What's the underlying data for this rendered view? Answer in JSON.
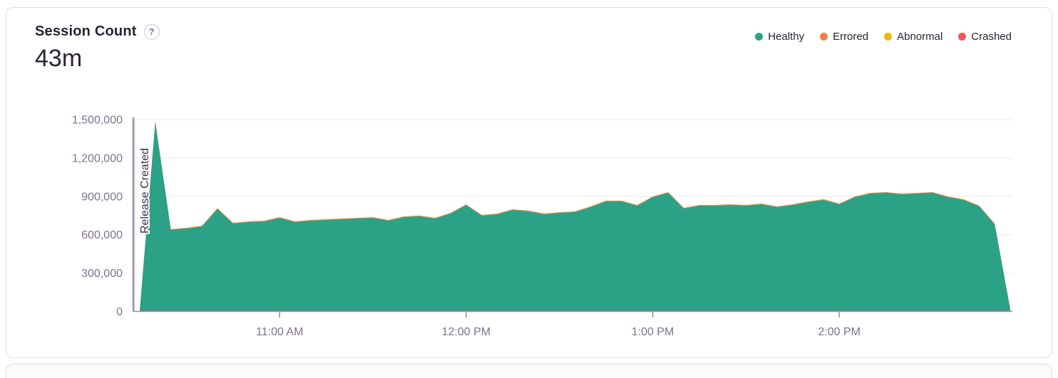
{
  "header": {
    "title": "Session Count",
    "big_number": "43m"
  },
  "icons": {
    "help": "?"
  },
  "legend": {
    "position": "top-right",
    "items": [
      {
        "label": "Healthy",
        "color": "#2ba185"
      },
      {
        "label": "Errored",
        "color": "#ef7d45"
      },
      {
        "label": "Abnormal",
        "color": "#efb810"
      },
      {
        "label": "Crashed",
        "color": "#f05558"
      }
    ]
  },
  "colors": {
    "healthy": "#2ba185",
    "errored": "#ef7d45",
    "abnormal": "#efb810",
    "crashed": "#f05558",
    "axis_line": "#988da9",
    "axis_text": "#80708f",
    "grid": "#f2eff5",
    "title_text": "#2b2233",
    "card_border": "#e0dce7",
    "release_line": "#877e93",
    "release_text": "#3c3545"
  },
  "chart_data": {
    "type": "area",
    "stacked": true,
    "title": "Session Count",
    "big_number": "43m",
    "ylim": [
      0,
      1500000
    ],
    "grid": "horizontal",
    "yticks": [
      {
        "value": 0,
        "label": "0"
      },
      {
        "value": 300000,
        "label": "300,000"
      },
      {
        "value": 600000,
        "label": "600,000"
      },
      {
        "value": 900000,
        "label": "900,000"
      },
      {
        "value": 1200000,
        "label": "1,200,000"
      },
      {
        "value": 1500000,
        "label": "1,500,000"
      }
    ],
    "xticks": [
      {
        "label": "11:00 AM",
        "index": 9
      },
      {
        "label": "12:00 PM",
        "index": 21
      },
      {
        "label": "1:00 PM",
        "index": 33
      },
      {
        "label": "2:00 PM",
        "index": 45
      }
    ],
    "annotation": {
      "label": "Release Created",
      "x": "10:15 AM"
    },
    "x": [
      "10:15 AM",
      "10:20 AM",
      "10:25 AM",
      "10:30 AM",
      "10:35 AM",
      "10:40 AM",
      "10:45 AM",
      "10:50 AM",
      "10:55 AM",
      "11:00 AM",
      "11:05 AM",
      "11:10 AM",
      "11:15 AM",
      "11:20 AM",
      "11:25 AM",
      "11:30 AM",
      "11:35 AM",
      "11:40 AM",
      "11:45 AM",
      "11:50 AM",
      "11:55 AM",
      "12:00 PM",
      "12:05 PM",
      "12:10 PM",
      "12:15 PM",
      "12:20 PM",
      "12:25 PM",
      "12:30 PM",
      "12:35 PM",
      "12:40 PM",
      "12:45 PM",
      "12:50 PM",
      "12:55 PM",
      "1:00 PM",
      "1:05 PM",
      "1:10 PM",
      "1:15 PM",
      "1:20 PM",
      "1:25 PM",
      "1:30 PM",
      "1:35 PM",
      "1:40 PM",
      "1:45 PM",
      "1:50 PM",
      "1:55 PM",
      "2:00 PM",
      "2:05 PM",
      "2:10 PM",
      "2:15 PM",
      "2:20 PM",
      "2:25 PM",
      "2:30 PM",
      "2:35 PM",
      "2:40 PM",
      "2:45 PM",
      "2:50 PM",
      "2:55 PM"
    ],
    "series": [
      {
        "name": "Healthy",
        "color": "#2ba185",
        "values": [
          0,
          1480000,
          636000,
          647000,
          663000,
          800000,
          686000,
          697000,
          702000,
          730000,
          697000,
          708000,
          714000,
          719000,
          725000,
          730000,
          708000,
          736000,
          742000,
          725000,
          764000,
          830000,
          747000,
          758000,
          792000,
          781000,
          758000,
          769000,
          775000,
          814000,
          859000,
          859000,
          825000,
          892000,
          925000,
          803000,
          825000,
          825000,
          831000,
          825000,
          836000,
          814000,
          831000,
          853000,
          870000,
          836000,
          892000,
          920000,
          926000,
          914000,
          920000,
          926000,
          892000,
          870000,
          820000,
          680000,
          15000
        ]
      },
      {
        "name": "Errored",
        "color": "#ef7d45",
        "sliver_offset": 7000,
        "note": "thin sliver stacked on Healthy, visible along the spike edges"
      },
      {
        "name": "Abnormal",
        "color": "#efb810",
        "note": "~0, not visible"
      },
      {
        "name": "Crashed",
        "color": "#f05558",
        "note": "~0, not visible"
      }
    ]
  }
}
